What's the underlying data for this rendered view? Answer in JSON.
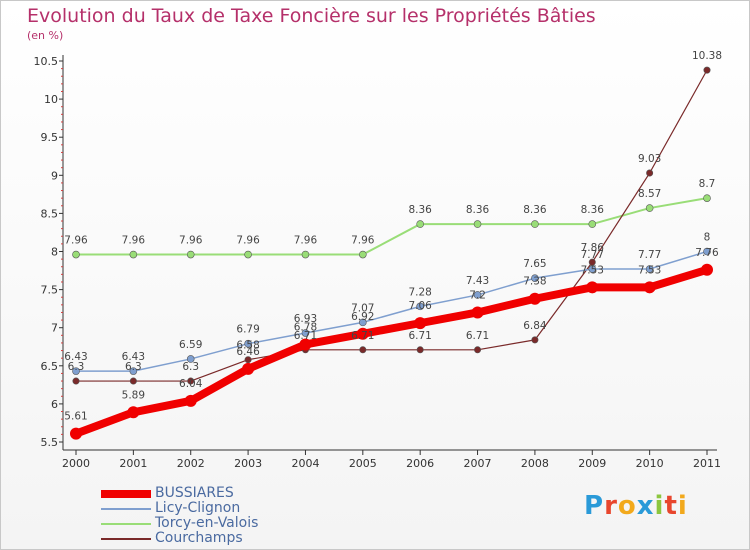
{
  "title": "Evolution du Taux de Taxe Foncière sur les Propriétés Bâties",
  "unit": "(en %)",
  "logo": {
    "text": "Proxiti",
    "colors": [
      "#2a9ad8",
      "#e8462d",
      "#f2a91c",
      "#2a9ad8",
      "#8cc63f",
      "#e8462d",
      "#f2a91c"
    ]
  },
  "chart_data": {
    "type": "line",
    "title": "Evolution du Taux de Taxe Foncière sur les Propriétés Bâties",
    "ylabel": "(en %)",
    "xlabel": "",
    "x": [
      "2000",
      "2001",
      "2002",
      "2003",
      "2004",
      "2005",
      "2006",
      "2007",
      "2008",
      "2009",
      "2010",
      "2011"
    ],
    "ylim": [
      5.5,
      10.5
    ],
    "yticks": [
      "5.5",
      "6",
      "6.5",
      "7",
      "7.5",
      "8",
      "8.5",
      "9",
      "9.5",
      "10",
      "10.5"
    ],
    "grid": false,
    "legend": "bottom-left",
    "series": [
      {
        "name": "BUSSIARES",
        "color": "#f00000",
        "values": [
          5.61,
          5.89,
          6.04,
          6.46,
          6.78,
          6.92,
          7.06,
          7.2,
          7.38,
          7.53,
          7.53,
          7.76
        ],
        "labels": [
          "5.61",
          "5.89",
          "6.04",
          "6.46",
          "6.78",
          "6.92",
          "7.06",
          "7.2",
          "7.38",
          "7.53",
          "7.53",
          "7.76"
        ]
      },
      {
        "name": "Licy-Clignon",
        "color": "#7f9fcf",
        "values": [
          6.43,
          6.43,
          6.59,
          6.79,
          6.93,
          7.07,
          7.28,
          7.43,
          7.65,
          7.77,
          7.77,
          8
        ],
        "labels": [
          "6.43",
          "6.43",
          "6.59",
          "6.79",
          "6.93",
          "7.07",
          "7.28",
          "7.43",
          "7.65",
          "7.77",
          "7.77",
          "8"
        ]
      },
      {
        "name": "Torcy-en-Valois",
        "color": "#99dd77",
        "values": [
          7.96,
          7.96,
          7.96,
          7.96,
          7.96,
          7.96,
          8.36,
          8.36,
          8.36,
          8.36,
          8.57,
          8.7
        ],
        "labels": [
          "7.96",
          "7.96",
          "7.96",
          "7.96",
          "7.96",
          "7.96",
          "8.36",
          "8.36",
          "8.36",
          "8.36",
          "8.57",
          "8.7"
        ]
      },
      {
        "name": "Courchamps",
        "color": "#7a2a2a",
        "values": [
          6.3,
          6.3,
          6.3,
          6.58,
          6.71,
          6.71,
          6.71,
          6.71,
          6.84,
          7.86,
          9.03,
          10.38
        ],
        "labels": [
          "6.3",
          "6.3",
          "6.3",
          "6.58",
          "6.71",
          "6.71",
          "6.71",
          "6.71",
          "6.84",
          "7.86",
          "9.03",
          "10.38"
        ]
      }
    ]
  }
}
